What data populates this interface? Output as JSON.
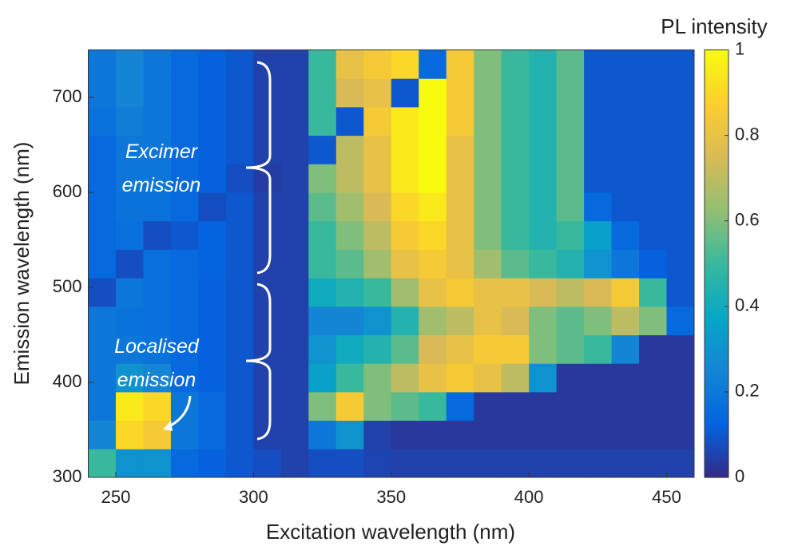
{
  "chart_data": {
    "type": "heatmap",
    "colorbar_title": "PL intensity",
    "x_label": "Excitation wavelength (nm)",
    "y_label": "Emission wavelength (nm)",
    "annotations": [
      "Excimer",
      "emission",
      "Localised",
      "emission"
    ],
    "colormap": "parula",
    "x": [
      245,
      255,
      265,
      275,
      285,
      295,
      305,
      315,
      325,
      335,
      345,
      355,
      365,
      375,
      385,
      395,
      405,
      415,
      425,
      435,
      445,
      455
    ],
    "y": [
      315,
      345,
      375,
      405,
      435,
      465,
      495,
      525,
      555,
      585,
      615,
      645,
      675,
      705,
      735
    ],
    "z": [
      [
        0.5,
        0.3,
        0.3,
        0.15,
        0.12,
        0.1,
        0.08,
        0.05,
        0.08,
        0.08,
        0.06,
        0.05,
        0.05,
        0.05,
        0.05,
        0.05,
        0.05,
        0.05,
        0.05,
        0.05,
        0.05,
        0.05
      ],
      [
        0.25,
        0.9,
        0.85,
        0.2,
        0.15,
        0.1,
        0.05,
        0.05,
        0.2,
        0.3,
        0.05,
        0.03,
        0.03,
        0.03,
        0.03,
        0.03,
        0.03,
        0.03,
        0.03,
        0.03,
        0.03,
        0.03
      ],
      [
        0.2,
        0.95,
        0.9,
        0.2,
        0.15,
        0.1,
        0.05,
        0.05,
        0.6,
        0.85,
        0.6,
        0.55,
        0.5,
        0.15,
        0.03,
        0.03,
        0.03,
        0.03,
        0.03,
        0.03,
        0.03,
        0.03
      ],
      [
        0.2,
        0.3,
        0.25,
        0.15,
        0.12,
        0.1,
        0.05,
        0.05,
        0.35,
        0.5,
        0.6,
        0.7,
        0.8,
        0.85,
        0.8,
        0.7,
        0.3,
        0.03,
        0.03,
        0.03,
        0.03,
        0.03
      ],
      [
        0.2,
        0.2,
        0.18,
        0.15,
        0.12,
        0.1,
        0.05,
        0.05,
        0.3,
        0.4,
        0.45,
        0.55,
        0.75,
        0.8,
        0.85,
        0.85,
        0.6,
        0.55,
        0.5,
        0.25,
        0.03,
        0.03
      ],
      [
        0.2,
        0.18,
        0.17,
        0.15,
        0.12,
        0.1,
        0.05,
        0.05,
        0.25,
        0.25,
        0.3,
        0.45,
        0.65,
        0.7,
        0.8,
        0.75,
        0.6,
        0.55,
        0.6,
        0.7,
        0.6,
        0.15
      ],
      [
        0.08,
        0.2,
        0.17,
        0.15,
        0.12,
        0.1,
        0.05,
        0.05,
        0.4,
        0.45,
        0.5,
        0.65,
        0.8,
        0.85,
        0.8,
        0.8,
        0.75,
        0.7,
        0.75,
        0.85,
        0.5,
        0.1
      ],
      [
        0.15,
        0.08,
        0.17,
        0.15,
        0.13,
        0.1,
        0.05,
        0.05,
        0.5,
        0.55,
        0.65,
        0.8,
        0.85,
        0.8,
        0.65,
        0.55,
        0.5,
        0.45,
        0.3,
        0.2,
        0.12,
        0.1
      ],
      [
        0.15,
        0.17,
        0.08,
        0.1,
        0.13,
        0.1,
        0.05,
        0.05,
        0.5,
        0.6,
        0.7,
        0.85,
        0.9,
        0.8,
        0.6,
        0.5,
        0.45,
        0.5,
        0.35,
        0.15,
        0.1,
        0.1
      ],
      [
        0.15,
        0.18,
        0.18,
        0.15,
        0.08,
        0.1,
        0.05,
        0.05,
        0.55,
        0.65,
        0.75,
        0.9,
        0.95,
        0.8,
        0.6,
        0.5,
        0.45,
        0.55,
        0.15,
        0.1,
        0.1,
        0.1
      ],
      [
        0.15,
        0.2,
        0.2,
        0.15,
        0.12,
        0.08,
        0.04,
        0.05,
        0.6,
        0.7,
        0.8,
        0.95,
        1.0,
        0.8,
        0.6,
        0.5,
        0.45,
        0.55,
        0.1,
        0.1,
        0.1,
        0.1
      ],
      [
        0.15,
        0.2,
        0.2,
        0.15,
        0.12,
        0.1,
        0.05,
        0.05,
        0.1,
        0.7,
        0.8,
        0.95,
        1.0,
        0.8,
        0.6,
        0.5,
        0.45,
        0.55,
        0.1,
        0.1,
        0.1,
        0.1
      ],
      [
        0.18,
        0.22,
        0.2,
        0.15,
        0.12,
        0.1,
        0.05,
        0.05,
        0.5,
        0.1,
        0.85,
        0.95,
        1.0,
        0.85,
        0.6,
        0.5,
        0.45,
        0.55,
        0.1,
        0.1,
        0.1,
        0.1
      ],
      [
        0.2,
        0.25,
        0.2,
        0.15,
        0.12,
        0.1,
        0.05,
        0.05,
        0.5,
        0.75,
        0.8,
        0.1,
        1.0,
        0.85,
        0.6,
        0.5,
        0.45,
        0.55,
        0.1,
        0.1,
        0.1,
        0.1
      ],
      [
        0.2,
        0.25,
        0.2,
        0.15,
        0.12,
        0.1,
        0.05,
        0.05,
        0.5,
        0.8,
        0.85,
        0.9,
        0.15,
        0.85,
        0.6,
        0.5,
        0.45,
        0.55,
        0.1,
        0.1,
        0.1,
        0.1
      ]
    ],
    "xlim": [
      240,
      460
    ],
    "ylim": [
      300,
      750
    ],
    "xticks": [
      250,
      300,
      350,
      400,
      450
    ],
    "yticks": [
      300,
      400,
      500,
      600,
      700
    ],
    "clim": [
      0,
      1
    ],
    "cticks": [
      0,
      0.2,
      0.4,
      0.6,
      0.8,
      1
    ]
  }
}
